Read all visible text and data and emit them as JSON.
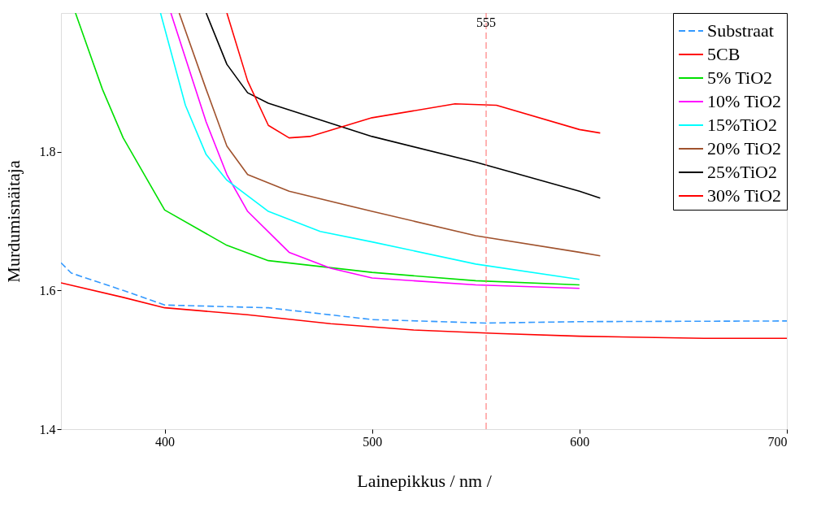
{
  "chart_data": {
    "type": "line",
    "xlabel": "Lainepikkus / nm /",
    "ylabel": "Murdumisnäitaja",
    "xlim": [
      350,
      700
    ],
    "xticks": [
      400,
      500,
      600,
      700
    ],
    "ylim": [
      1.4,
      2.0
    ],
    "yticks": [
      1.4,
      1.6,
      1.8
    ],
    "grid": false,
    "legend": "top right",
    "marker": "none",
    "ref_lines": [
      {
        "axis": "x",
        "value": 555,
        "label": "555",
        "color": "#ff6666",
        "line_style": "dashed"
      }
    ],
    "series": [
      {
        "name": "Substraat",
        "color": "#3399ff",
        "line_style": "dashed",
        "x": [
          350,
          355,
          380,
          400,
          450,
          500,
          555,
          600,
          700
        ],
        "values": [
          1.64,
          1.625,
          1.6,
          1.579,
          1.575,
          1.558,
          1.553,
          1.555,
          1.556
        ]
      },
      {
        "name": "5CB",
        "color": "#ff0000",
        "x": [
          350,
          380,
          400,
          440,
          480,
          520,
          560,
          600,
          660,
          700
        ],
        "values": [
          1.611,
          1.59,
          1.575,
          1.565,
          1.552,
          1.543,
          1.538,
          1.534,
          1.531,
          1.531
        ]
      },
      {
        "name": "5% TiO2",
        "color": "#00e000",
        "x": [
          357,
          370,
          380,
          400,
          430,
          450,
          500,
          550,
          600
        ],
        "values": [
          2.0,
          1.89,
          1.82,
          1.716,
          1.665,
          1.643,
          1.626,
          1.614,
          1.608
        ]
      },
      {
        "name": "10% TiO2",
        "color": "#ff00ff",
        "x": [
          403,
          420,
          430,
          440,
          460,
          480,
          500,
          550,
          600
        ],
        "values": [
          2.0,
          1.843,
          1.767,
          1.714,
          1.655,
          1.632,
          1.618,
          1.608,
          1.603
        ]
      },
      {
        "name": "15%TiO2",
        "color": "#00ffff",
        "x": [
          398,
          410,
          420,
          430,
          450,
          475,
          500,
          550,
          600
        ],
        "values": [
          2.0,
          1.867,
          1.796,
          1.759,
          1.714,
          1.685,
          1.67,
          1.638,
          1.616
        ]
      },
      {
        "name": "20% TiO2",
        "color": "#a0522d",
        "x": [
          407,
          420,
          430,
          440,
          460,
          500,
          550,
          600,
          610
        ],
        "values": [
          2.0,
          1.89,
          1.808,
          1.767,
          1.743,
          1.714,
          1.679,
          1.655,
          1.65
        ]
      },
      {
        "name": "25%TiO2",
        "color": "#000000",
        "x": [
          420,
          430,
          440,
          450,
          500,
          550,
          600,
          610
        ],
        "values": [
          2.0,
          1.926,
          1.885,
          1.87,
          1.822,
          1.785,
          1.743,
          1.733
        ]
      },
      {
        "name": "30% TiO2",
        "color": "#ff0000",
        "x": [
          430,
          440,
          450,
          460,
          470,
          500,
          540,
          560,
          600,
          610
        ],
        "values": [
          2.0,
          1.902,
          1.838,
          1.82,
          1.822,
          1.849,
          1.869,
          1.867,
          1.832,
          1.827
        ]
      }
    ]
  }
}
